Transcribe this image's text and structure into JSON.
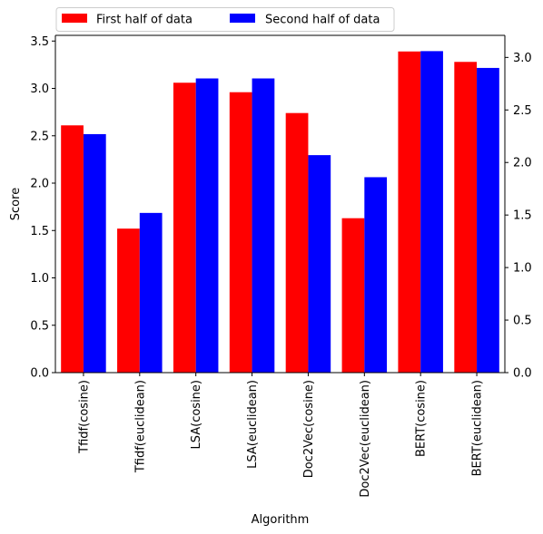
{
  "chart_data": {
    "type": "bar",
    "xlabel": "Algorithm",
    "ylabel": "Score",
    "categories": [
      "Tfidf(cosine)",
      "Tfidf(euclidean)",
      "LSA(cosine)",
      "LSA(euclidean)",
      "Doc2Vec(cosine)",
      "Doc2Vec(euclidean)",
      "BERT(cosine)",
      "BERT(euclidean)"
    ],
    "series": [
      {
        "name": "First half of data",
        "color": "#ff0000",
        "axis": "left",
        "values": [
          2.61,
          1.52,
          3.06,
          2.96,
          2.74,
          1.63,
          3.39,
          3.28
        ]
      },
      {
        "name": "Second half of data",
        "color": "#0000ff",
        "axis": "right",
        "values": [
          2.27,
          1.52,
          2.8,
          2.8,
          2.07,
          1.86,
          3.06,
          2.9
        ]
      }
    ],
    "y_left": {
      "lim": [
        0,
        3.56
      ],
      "ticks": [
        "0.0",
        "0.5",
        "1.0",
        "1.5",
        "2.0",
        "2.5",
        "3.0",
        "3.5"
      ]
    },
    "y_right": {
      "lim": [
        0,
        3.21
      ],
      "ticks": [
        "0.0",
        "0.5",
        "1.0",
        "1.5",
        "2.0",
        "2.5",
        "3.0"
      ]
    },
    "legend_position": "top-left, above plot, 2 columns",
    "grid": false
  }
}
